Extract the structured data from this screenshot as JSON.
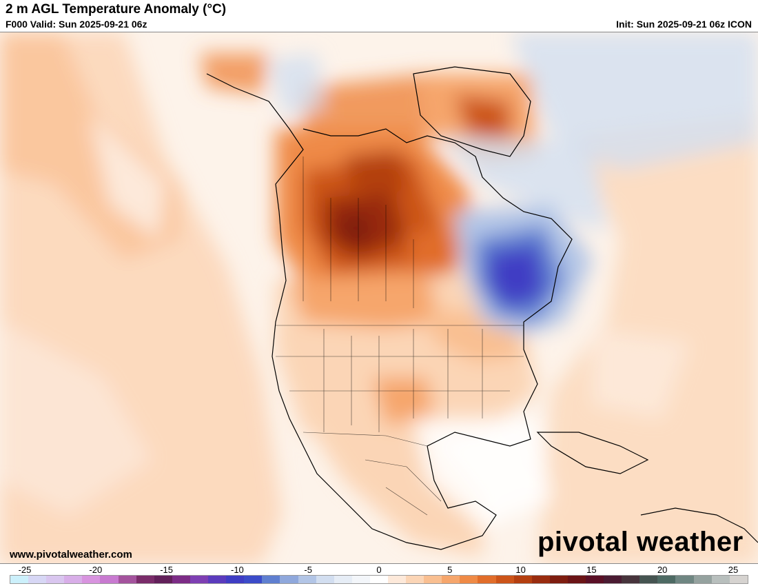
{
  "header": {
    "title": "2 m AGL Temperature Anomaly (°C)",
    "valid": "F000 Valid: Sun 2025-09-21 06z",
    "init": "Init: Sun 2025-09-21 06z ICON"
  },
  "footer": {
    "website": "www.pivotalweather.com",
    "brand": "pivotal weather"
  },
  "colorbar": {
    "ticks": [
      "-25",
      "-20",
      "-15",
      "-10",
      "-5",
      "0",
      "5",
      "10",
      "15",
      "20",
      "25"
    ],
    "colors": [
      "#ccf0fb",
      "#d7d7f5",
      "#d9c6ef",
      "#d8aee8",
      "#d894df",
      "#c87ad0",
      "#a4539d",
      "#7a2c6a",
      "#62205a",
      "#7c2c86",
      "#7e3fb3",
      "#5b3bbd",
      "#3f3dc4",
      "#3b4bc9",
      "#5f7fd0",
      "#8fa8dc",
      "#b2c5e6",
      "#d2def0",
      "#e6edf6",
      "#f3f6fa",
      "#ffffff",
      "#fde9da",
      "#fbd5b6",
      "#f9bf91",
      "#f6a66c",
      "#ef8a46",
      "#e16d2a",
      "#cc5419",
      "#b43f10",
      "#992c0f",
      "#7e1d10",
      "#6b1416",
      "#5a1026",
      "#4a1b32",
      "#47343c",
      "#455451",
      "#4d6a63",
      "#6f8682",
      "#95a29f",
      "#b8bfbd",
      "#d6d3d0"
    ]
  }
}
